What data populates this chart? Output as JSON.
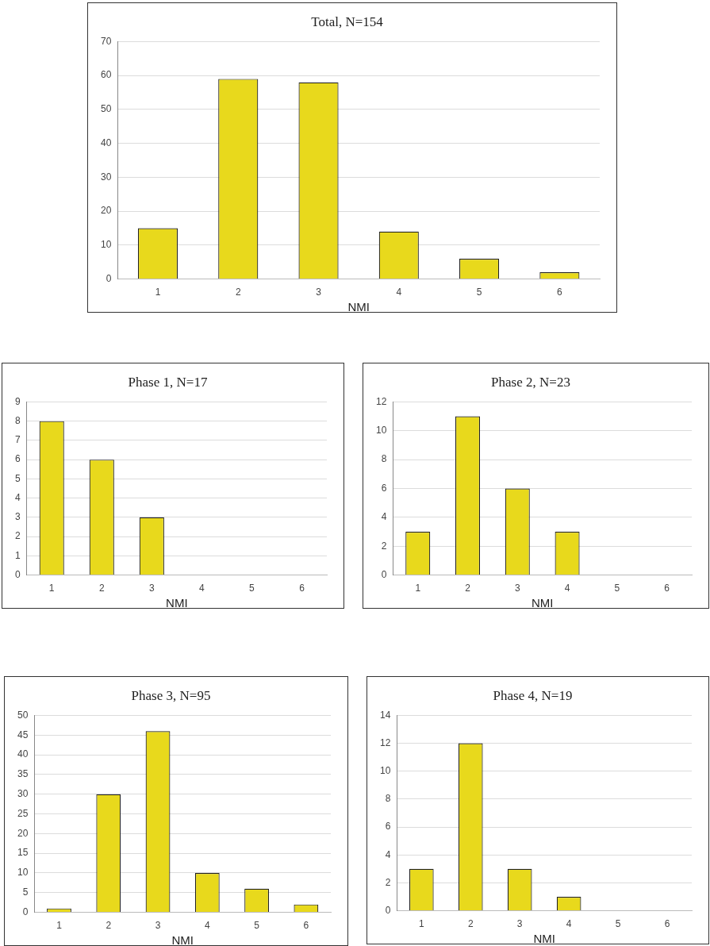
{
  "chart_data": [
    {
      "type": "bar",
      "title": "Total, N=154",
      "xlabel": "NMI",
      "categories": [
        "1",
        "2",
        "3",
        "4",
        "5",
        "6"
      ],
      "values": [
        15,
        59,
        58,
        14,
        6,
        2
      ],
      "color": "#e8d91c",
      "ylim": [
        0,
        70
      ],
      "yticks": [
        0,
        10,
        20,
        30,
        40,
        50,
        60,
        70
      ],
      "grid": "y"
    },
    {
      "type": "bar",
      "title": "Phase 1, N=17",
      "xlabel": "NMI",
      "categories": [
        "1",
        "2",
        "3",
        "4",
        "5",
        "6"
      ],
      "values": [
        8,
        6,
        3,
        0,
        0,
        0
      ],
      "color": "#e8d91c",
      "ylim": [
        0,
        9
      ],
      "yticks": [
        0,
        1,
        2,
        3,
        4,
        5,
        6,
        7,
        8,
        9
      ],
      "grid": "y"
    },
    {
      "type": "bar",
      "title": "Phase 2, N=23",
      "xlabel": "NMI",
      "categories": [
        "1",
        "2",
        "3",
        "4",
        "5",
        "6"
      ],
      "values": [
        3,
        11,
        6,
        3,
        0,
        0
      ],
      "color": "#e8d91c",
      "ylim": [
        0,
        12
      ],
      "yticks": [
        0,
        2,
        4,
        6,
        8,
        10,
        12
      ],
      "grid": "y"
    },
    {
      "type": "bar",
      "title": "Phase 3, N=95",
      "xlabel": "NMI",
      "categories": [
        "1",
        "2",
        "3",
        "4",
        "5",
        "6"
      ],
      "values": [
        1,
        30,
        46,
        10,
        6,
        2
      ],
      "color": "#e8d91c",
      "ylim": [
        0,
        50
      ],
      "yticks": [
        0,
        5,
        10,
        15,
        20,
        25,
        30,
        35,
        40,
        45,
        50
      ],
      "grid": "y"
    },
    {
      "type": "bar",
      "title": "Phase 4, N=19",
      "xlabel": "NMI",
      "categories": [
        "1",
        "2",
        "3",
        "4",
        "5",
        "6"
      ],
      "values": [
        3,
        12,
        3,
        1,
        0,
        0
      ],
      "color": "#e8d91c",
      "ylim": [
        0,
        14
      ],
      "yticks": [
        0,
        2,
        4,
        6,
        8,
        10,
        12,
        14
      ],
      "grid": "y"
    }
  ]
}
